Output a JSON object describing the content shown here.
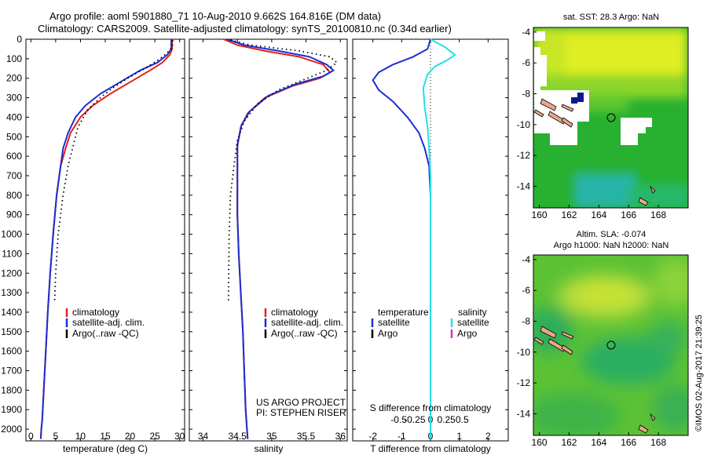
{
  "header": {
    "line1": "Argo profile: aoml 5901880_71 10-Aug-2010 9.662S 164.816E (DM data)",
    "line2": "Climatology: CARS2009. Satellite-adjusted climatology: synTS_20100810.nc (0.34d earlier)"
  },
  "side_label": "©IMOS 02-Aug-2017 21:39:25",
  "colors": {
    "climatology": "#e02020",
    "satellite": "#1a2fd0",
    "argo": "#000000",
    "sal_satellite": "#22e0e8",
    "sal_argo": "#d030d0"
  },
  "chart_data": [
    {
      "type": "line",
      "xlabel": "temperature (deg C)",
      "xlim": [
        -1,
        31
      ],
      "xticks": [
        0,
        5,
        10,
        15,
        20,
        25,
        30
      ],
      "ylim": [
        2060,
        0
      ],
      "yticks": [
        0,
        100,
        200,
        300,
        400,
        500,
        600,
        700,
        800,
        900,
        1000,
        1100,
        1200,
        1300,
        1400,
        1500,
        1600,
        1700,
        1800,
        1900,
        2000
      ],
      "legend": [
        "climatology",
        "satellite-adj. clim.",
        "Argo(..raw -QC)"
      ],
      "series": [
        {
          "name": "climatology",
          "style": "solid",
          "x": [
            28.5,
            28.5,
            28.0,
            26.5,
            24.0,
            20.0,
            16.0,
            12.5,
            10.0,
            8.0,
            7.0,
            6.0,
            5.2,
            4.5,
            3.9,
            3.4,
            3.0,
            2.6,
            2.3,
            2.1,
            2.0
          ],
          "y": [
            0,
            50,
            80,
            120,
            160,
            220,
            280,
            340,
            400,
            480,
            560,
            650,
            800,
            1000,
            1200,
            1400,
            1600,
            1800,
            1950,
            2000,
            2050
          ]
        },
        {
          "name": "satellite-adj. clim.",
          "style": "solid",
          "x": [
            28.3,
            28.3,
            27.5,
            25.5,
            22.0,
            18.0,
            14.0,
            11.0,
            9.0,
            7.5,
            6.5,
            6.0,
            5.2,
            4.5,
            3.9,
            3.4,
            3.0,
            2.6,
            2.3,
            2.1,
            2.0
          ],
          "y": [
            0,
            50,
            80,
            120,
            160,
            220,
            280,
            340,
            400,
            480,
            560,
            650,
            800,
            1000,
            1200,
            1400,
            1600,
            1800,
            1950,
            2000,
            2050
          ]
        },
        {
          "name": "Argo(..raw -QC)",
          "style": "dotted",
          "x": [
            28.6,
            28.5,
            27.5,
            25.5,
            23.0,
            19.5,
            16.5,
            14.0,
            11.5,
            9.5,
            8.5,
            7.5,
            6.5,
            5.5,
            5.0,
            4.8
          ],
          "y": [
            5,
            40,
            70,
            110,
            150,
            200,
            250,
            300,
            360,
            450,
            550,
            650,
            800,
            1000,
            1200,
            1340
          ]
        }
      ]
    },
    {
      "type": "line",
      "xlabel": "salinity",
      "xlim": [
        33.8,
        36.1
      ],
      "xticks": [
        34,
        34.5,
        35,
        35.5,
        36
      ],
      "xticklabels": [
        "34",
        "34.5",
        "35",
        "35.5",
        "36"
      ],
      "ylim": [
        2060,
        0
      ],
      "legend": [
        "climatology",
        "satellite-adj. clim.",
        "Argo(..raw -QC)"
      ],
      "annotation": [
        "US ARGO PROJECT",
        "PI: STEPHEN RISER"
      ],
      "series": [
        {
          "name": "climatology",
          "style": "solid",
          "x": [
            34.3,
            34.5,
            34.9,
            35.4,
            35.75,
            35.85,
            35.7,
            35.3,
            34.9,
            34.65,
            34.55,
            34.5,
            34.5,
            34.5,
            34.52,
            34.55,
            34.58,
            34.6,
            34.62,
            34.64,
            34.65
          ],
          "y": [
            0,
            30,
            60,
            90,
            130,
            170,
            200,
            240,
            300,
            380,
            450,
            550,
            700,
            900,
            1100,
            1300,
            1500,
            1700,
            1900,
            2000,
            2050
          ]
        },
        {
          "name": "satellite-adj. clim.",
          "style": "solid",
          "x": [
            34.35,
            34.6,
            35.1,
            35.55,
            35.8,
            35.9,
            35.75,
            35.35,
            34.95,
            34.68,
            34.56,
            34.5,
            34.5,
            34.5,
            34.52,
            34.55,
            34.58,
            34.6,
            34.62,
            34.64,
            34.65
          ],
          "y": [
            0,
            30,
            60,
            90,
            130,
            160,
            190,
            230,
            290,
            370,
            440,
            540,
            700,
            900,
            1100,
            1300,
            1500,
            1700,
            1900,
            2000,
            2050
          ]
        },
        {
          "name": "Argo(..raw -QC)",
          "style": "dotted",
          "x": [
            34.4,
            34.7,
            35.4,
            35.85,
            35.95,
            35.8,
            35.45,
            35.1,
            34.8,
            34.6,
            34.5,
            34.45,
            34.4,
            34.38,
            34.37
          ],
          "y": [
            5,
            30,
            60,
            90,
            120,
            160,
            210,
            260,
            330,
            420,
            520,
            650,
            800,
            1000,
            1340
          ]
        }
      ]
    },
    {
      "type": "line",
      "xlabel": "T difference from climatology",
      "xlabel_top": "S difference from climatology",
      "xlim": [
        -2.7,
        2.7
      ],
      "xticks": [
        -2,
        -1,
        0,
        1,
        2
      ],
      "xticks_top": [
        "-0.5",
        "-0.25",
        "0",
        "0.25",
        "0.5"
      ],
      "ylim": [
        2060,
        0
      ],
      "legend": {
        "temperature": [
          "satellite",
          "Argo"
        ],
        "salinity": [
          "satellite",
          "Argo"
        ]
      },
      "legend_titles": [
        "temperature",
        "salinity"
      ],
      "series": [
        {
          "name": "temperature satellite",
          "style": "solid",
          "x": [
            0,
            -0.1,
            -0.6,
            -1.3,
            -1.8,
            -2.0,
            -1.8,
            -1.3,
            -0.8,
            -0.4,
            -0.2,
            -0.05,
            0,
            0,
            0
          ],
          "y": [
            0,
            50,
            90,
            130,
            170,
            210,
            260,
            320,
            400,
            480,
            560,
            650,
            800,
            1200,
            2050
          ]
        },
        {
          "name": "salinity satellite",
          "style": "solid",
          "x": [
            0,
            0.5,
            0.85,
            0.55,
            0.15,
            -0.1,
            -0.25,
            -0.2,
            -0.1,
            -0.05,
            0,
            0,
            0
          ],
          "y": [
            0,
            40,
            80,
            110,
            140,
            180,
            250,
            350,
            450,
            560,
            700,
            1200,
            2050
          ]
        }
      ]
    },
    {
      "type": "heatmap",
      "title": "sat. SST: 28.3  Argo: NaN",
      "xticks": [
        160,
        162,
        164,
        166,
        168
      ],
      "yticks": [
        -4,
        -6,
        -8,
        -10,
        -12,
        -14
      ],
      "xlim": [
        159.6,
        170.0
      ],
      "ylim": [
        -15.4,
        -3.7
      ]
    },
    {
      "type": "heatmap",
      "title": "Altim. SLA: -0.074",
      "subtitle": "Argo h1000: NaN h2000: NaN",
      "xticks": [
        160,
        162,
        164,
        166,
        168
      ],
      "yticks": [
        -4,
        -6,
        -8,
        -10,
        -12,
        -14
      ],
      "xlim": [
        159.6,
        170.0
      ],
      "ylim": [
        -15.4,
        -3.7
      ]
    }
  ]
}
